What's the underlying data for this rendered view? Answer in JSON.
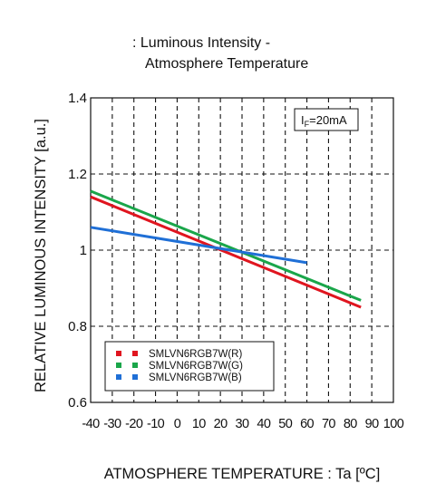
{
  "chart_data": {
    "type": "line",
    "title_lines": [
      ": Luminous Intensity -",
      "Atmosphere Temperature"
    ],
    "ylabel": "RELATIVE LUMINOUS INTENSITY [a.u.]",
    "xlabel": "ATMOSPHERE TEMPERATURE : Ta [ºC]",
    "xlim": [
      -40,
      100
    ],
    "ylim": [
      0.6,
      1.4
    ],
    "x_ticks": [
      -40,
      -30,
      -20,
      -10,
      0,
      10,
      20,
      30,
      40,
      50,
      60,
      70,
      80,
      90,
      100
    ],
    "x_tick_labels": [
      "-40",
      "-30",
      "-20",
      "-10",
      "0",
      "10",
      "20",
      "30",
      "40",
      "50",
      "60",
      "70",
      "80",
      "90",
      "100"
    ],
    "y_ticks": [
      0.6,
      0.8,
      1.0,
      1.2,
      1.4
    ],
    "y_tick_labels": [
      "0.6",
      "0.8",
      "1",
      "1.2",
      "1.4"
    ],
    "grid": true,
    "legend_position": "bottom-left",
    "condition_sub": "F",
    "condition_value": "=20mA",
    "series": [
      {
        "name": "SMLVN6RGB7W(R)",
        "color": "#e0151f",
        "x": [
          -40,
          85
        ],
        "y": [
          1.14,
          0.85
        ]
      },
      {
        "name": "SMLVN6RGB7W(G)",
        "color": "#1aa64a",
        "x": [
          -40,
          85
        ],
        "y": [
          1.155,
          0.868
        ]
      },
      {
        "name": "SMLVN6RGB7W(B)",
        "color": "#1f6fd6",
        "x": [
          -40,
          60
        ],
        "y": [
          1.06,
          0.967
        ]
      }
    ]
  }
}
